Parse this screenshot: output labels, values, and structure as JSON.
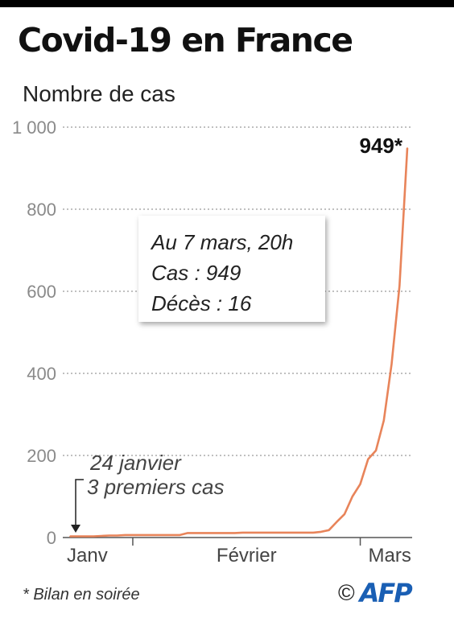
{
  "header": {
    "title": "Covid-19 en France",
    "subtitle": "Nombre de cas"
  },
  "colors": {
    "line": "#e8845a",
    "grid": "#9a9a9a",
    "axis": "#555555",
    "logo": "#1a5fb4"
  },
  "chart_data": {
    "type": "line",
    "title": "Covid-19 en France",
    "subtitle": "Nombre de cas",
    "xlabel": "",
    "ylabel": "",
    "x_range": [
      "2020-01-24",
      "2020-03-07"
    ],
    "ylim": [
      0,
      1000
    ],
    "y_ticks": [
      0,
      200,
      400,
      600,
      800,
      1000
    ],
    "y_tick_labels": [
      "0",
      "200",
      "400",
      "600",
      "800",
      "1 000"
    ],
    "x_month_labels": [
      "Janv",
      "Février",
      "Mars"
    ],
    "x_month_starts": [
      "2020-02-01",
      "2020-03-01"
    ],
    "grid": true,
    "series": [
      {
        "x": [
          "2020-01-24",
          "2020-01-25",
          "2020-01-26",
          "2020-01-27",
          "2020-01-28",
          "2020-01-29",
          "2020-01-30",
          "2020-01-31",
          "2020-02-01",
          "2020-02-02",
          "2020-02-03",
          "2020-02-04",
          "2020-02-05",
          "2020-02-06",
          "2020-02-07",
          "2020-02-08",
          "2020-02-09",
          "2020-02-10",
          "2020-02-11",
          "2020-02-12",
          "2020-02-13",
          "2020-02-14",
          "2020-02-15",
          "2020-02-16",
          "2020-02-17",
          "2020-02-18",
          "2020-02-19",
          "2020-02-20",
          "2020-02-21",
          "2020-02-22",
          "2020-02-23",
          "2020-02-24",
          "2020-02-25",
          "2020-02-26",
          "2020-02-27",
          "2020-02-28",
          "2020-02-29",
          "2020-03-01",
          "2020-03-02",
          "2020-03-03",
          "2020-03-04",
          "2020-03-05",
          "2020-03-06",
          "2020-03-07"
        ],
        "values": [
          3,
          3,
          3,
          3,
          4,
          5,
          5,
          6,
          6,
          6,
          6,
          6,
          6,
          6,
          6,
          11,
          11,
          11,
          11,
          11,
          11,
          11,
          12,
          12,
          12,
          12,
          12,
          12,
          12,
          12,
          12,
          12,
          14,
          18,
          38,
          57,
          100,
          130,
          191,
          212,
          285,
          423,
          613,
          949
        ]
      }
    ],
    "annotations": [
      {
        "lines": [
          "24 janvier",
          "3 premiers cas"
        ],
        "date": "2020-01-24",
        "value": 3
      },
      {
        "label": "949*",
        "date": "2020-03-07",
        "value": 949
      }
    ]
  },
  "infobox": {
    "line1": "Au 7 mars, 20h",
    "line2": "Cas : 949",
    "line3": "Décès : 16"
  },
  "footer": {
    "footnote": "* Bilan en soirée",
    "copyright": "©",
    "logo": "AFP"
  }
}
